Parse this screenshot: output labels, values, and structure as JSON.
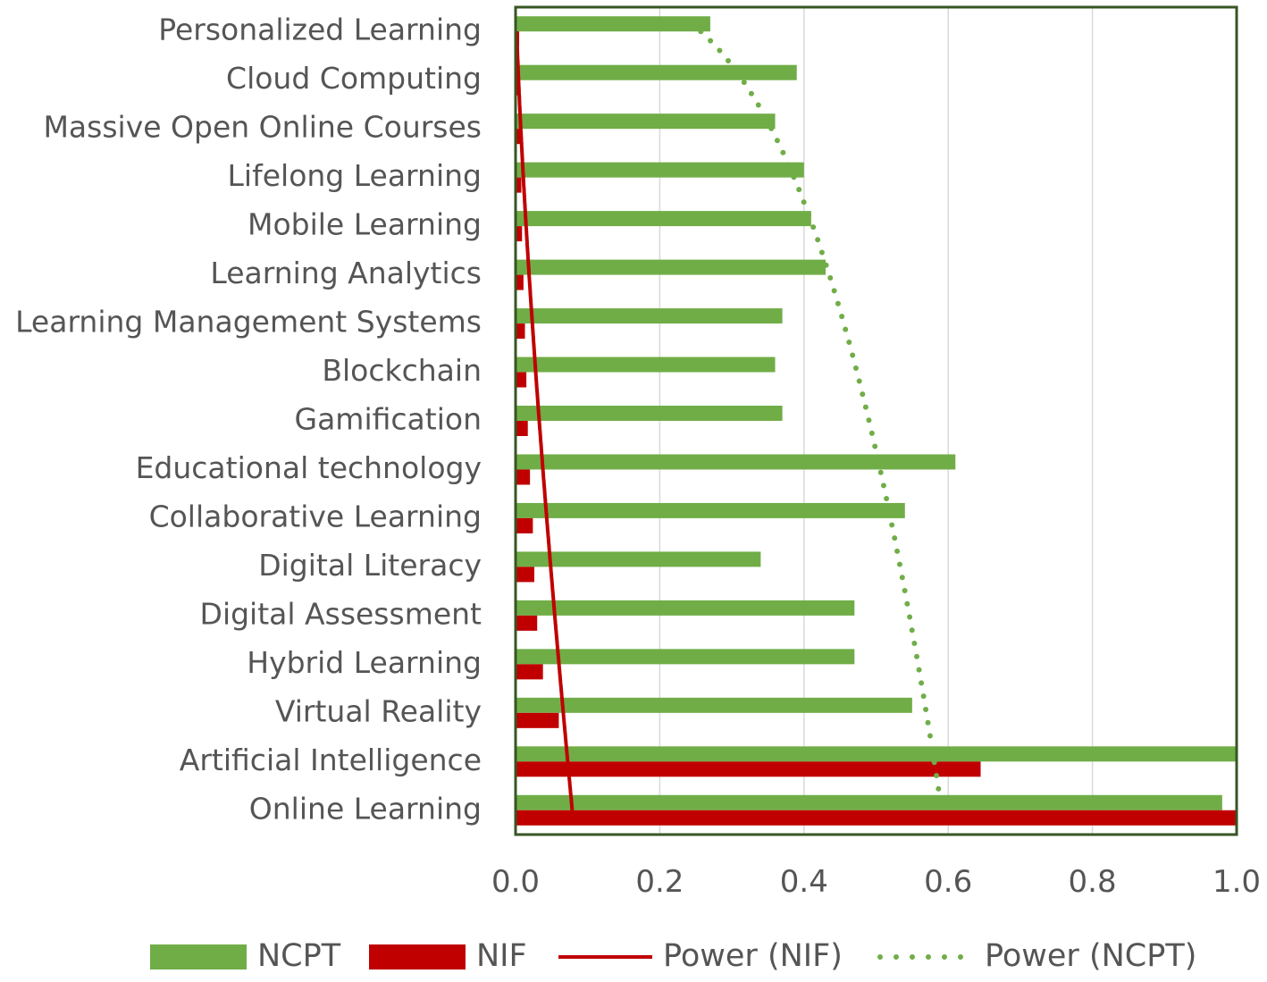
{
  "chart_data": {
    "type": "bar",
    "orientation": "horizontal",
    "title": "",
    "xlabel": "",
    "ylabel": "",
    "categories": [
      "Personalized Learning",
      "Cloud Computing",
      "Massive Open Online Courses",
      "Lifelong Learning",
      "Mobile Learning",
      "Learning Analytics",
      "Learning Management Systems",
      "Blockchain",
      "Gamification",
      "Educational technology",
      "Collaborative Learning",
      "Digital Literacy",
      "Digital Assessment",
      "Hybrid Learning",
      "Virtual Reality",
      "Artificial Intelligence",
      "Online Learning"
    ],
    "series": [
      {
        "name": "NCPT",
        "color": "#70AD47",
        "values": [
          0.27,
          0.39,
          0.36,
          0.4,
          0.41,
          0.43,
          0.37,
          0.36,
          0.37,
          0.61,
          0.54,
          0.34,
          0.47,
          0.47,
          0.55,
          1.0,
          0.98
        ]
      },
      {
        "name": "NIF",
        "color": "#C00000",
        "values": [
          0.005,
          0.006,
          0.007,
          0.008,
          0.009,
          0.011,
          0.013,
          0.015,
          0.017,
          0.02,
          0.024,
          0.026,
          0.03,
          0.038,
          0.06,
          0.645,
          1.0
        ]
      }
    ],
    "trendlines": [
      {
        "name": "Power (NIF)",
        "series": "NIF",
        "type": "power",
        "style": "solid",
        "color": "#C00000"
      },
      {
        "name": "Power (NCPT)",
        "series": "NCPT",
        "type": "power",
        "style": "dotted",
        "color": "#70AD47"
      }
    ],
    "xlim": [
      0,
      1.0
    ],
    "xticks": [
      "0.0",
      "0.2",
      "0.4",
      "0.6",
      "0.8",
      "1.0"
    ],
    "grid": true,
    "legend_position": "bottom",
    "legend": [
      "NCPT",
      "NIF",
      "Power (NIF)",
      "Power (NCPT)"
    ]
  }
}
